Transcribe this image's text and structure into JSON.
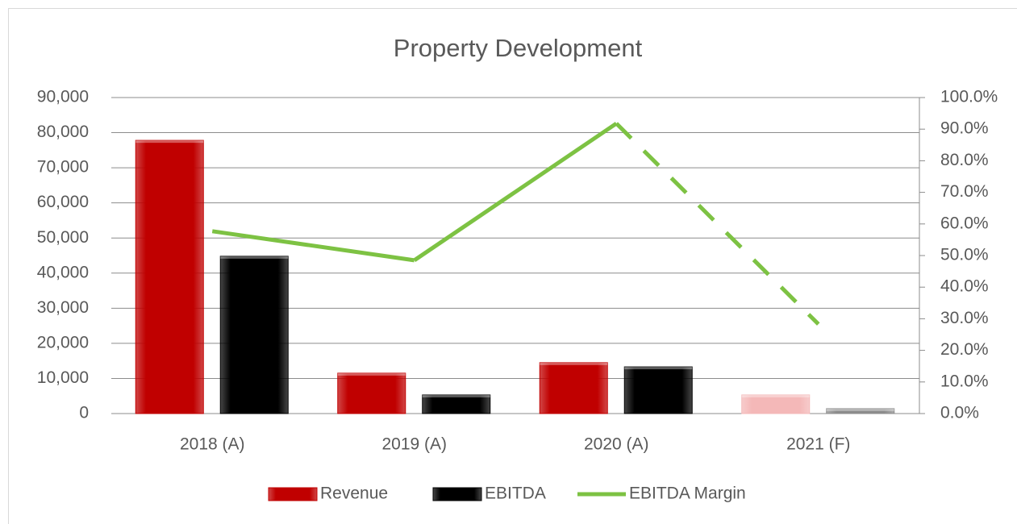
{
  "chart_data": {
    "type": "bar_line",
    "title": "Property Development",
    "categories": [
      "2018 (A)",
      "2019 (A)",
      "2020 (A)",
      "2021 (F)"
    ],
    "series": [
      {
        "name": "Revenue",
        "type": "bar",
        "color": "#c00000",
        "point_colors": [
          "#c00000",
          "#c00000",
          "#c00000",
          "#f4b8b8"
        ],
        "values": [
          77800,
          11500,
          14500,
          5300
        ]
      },
      {
        "name": "EBITDA",
        "type": "bar",
        "color": "#000000",
        "point_colors": [
          "#000000",
          "#000000",
          "#000000",
          "#8c8c8c"
        ],
        "values": [
          44800,
          5300,
          13300,
          1400
        ]
      },
      {
        "name": "EBITDA Margin",
        "type": "line",
        "axis": "y2",
        "color": "#7dc243",
        "segment_styles": [
          "solid",
          "solid",
          "dashed"
        ],
        "values": [
          57.7,
          48.5,
          91.8,
          28.3
        ]
      }
    ],
    "ylim": [
      0,
      90000
    ],
    "yticks": [
      0,
      {
        "value": 10000,
        "label": "10,000"
      },
      {
        "value": 20000,
        "label": "20,000"
      },
      {
        "value": 30000,
        "label": "30,000"
      },
      {
        "value": 40000,
        "label": "40,000"
      },
      {
        "value": 50000,
        "label": "50,000"
      },
      {
        "value": 60000,
        "label": "60,000"
      },
      {
        "value": 70000,
        "label": "70,000"
      },
      {
        "value": 80000,
        "label": "80,000"
      },
      {
        "value": 90000,
        "label": "90,000"
      }
    ],
    "y2lim": [
      0,
      100
    ],
    "y2ticks": [
      {
        "value": 0,
        "label": "0.0%"
      },
      {
        "value": 10,
        "label": "10.0%"
      },
      {
        "value": 20,
        "label": "20.0%"
      },
      {
        "value": 30,
        "label": "30.0%"
      },
      {
        "value": 40,
        "label": "40.0%"
      },
      {
        "value": 50,
        "label": "50.0%"
      },
      {
        "value": 60,
        "label": "60.0%"
      },
      {
        "value": 70,
        "label": "70.0%"
      },
      {
        "value": 80,
        "label": "80.0%"
      },
      {
        "value": 90,
        "label": "90.0%"
      },
      {
        "value": 100,
        "label": "100.0%"
      }
    ],
    "grid": true,
    "legend": "bottom"
  }
}
